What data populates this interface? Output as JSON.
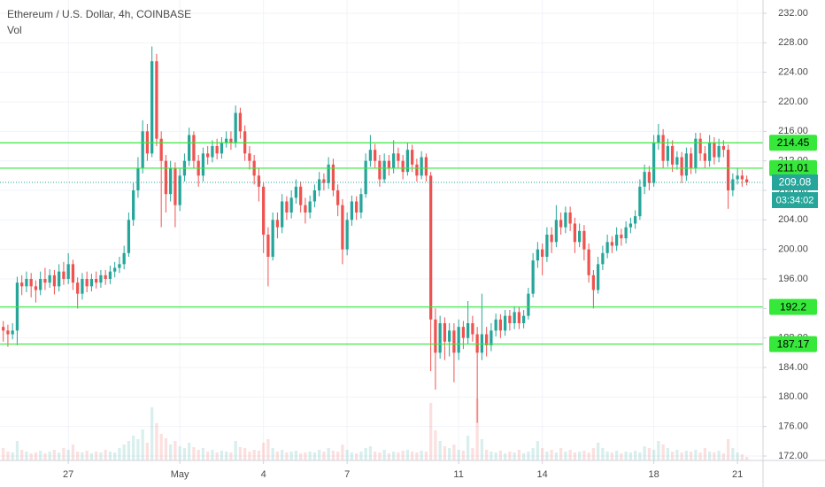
{
  "chart_data": {
    "type": "candlestick",
    "title": "Ethereum / U.S. Dollar, 4h, COINBASE",
    "subtitle": "Vol",
    "up_color": "#26a69a",
    "down_color": "#ef5350",
    "grid": true,
    "xlim": [
      -0.7,
      163.5
    ],
    "ylim": [
      171.4,
      233.8
    ],
    "yticks": [
      {
        "value": 172,
        "label": "172.00"
      },
      {
        "value": 176,
        "label": "176.00"
      },
      {
        "value": 180,
        "label": "180.00"
      },
      {
        "value": 184,
        "label": "184.00"
      },
      {
        "value": 188,
        "label": "188.00"
      },
      {
        "value": 192,
        "label": "192.00"
      },
      {
        "value": 196,
        "label": "196.00"
      },
      {
        "value": 200,
        "label": "200.00"
      },
      {
        "value": 204,
        "label": "204.00"
      },
      {
        "value": 208,
        "label": "208.00"
      },
      {
        "value": 212,
        "label": "212.00"
      },
      {
        "value": 216,
        "label": "216.00"
      },
      {
        "value": 220,
        "label": "220.00"
      },
      {
        "value": 224,
        "label": "224.00"
      },
      {
        "value": 228,
        "label": "228.00"
      },
      {
        "value": 232,
        "label": "232.00"
      }
    ],
    "xticks": [
      {
        "value": 14,
        "label": "27"
      },
      {
        "value": 38,
        "label": "May"
      },
      {
        "value": 56,
        "label": "4"
      },
      {
        "value": 74,
        "label": "7"
      },
      {
        "value": 98,
        "label": "11"
      },
      {
        "value": 116,
        "label": "14"
      },
      {
        "value": 140,
        "label": "18"
      },
      {
        "value": 158,
        "label": "21"
      }
    ],
    "open": [
      189.5,
      189,
      188.5,
      189,
      195.5,
      195,
      196,
      195,
      194.5,
      196,
      195.5,
      196.5,
      195,
      197,
      196,
      198,
      195.5,
      194,
      196,
      195,
      196,
      195.5,
      196.5,
      196,
      197,
      197.5,
      198,
      199.5,
      204,
      208,
      211,
      216,
      213,
      225.5,
      215,
      212,
      207.5,
      211,
      206,
      210,
      212,
      215.5,
      212,
      210,
      213,
      212.5,
      214,
      213,
      214.5,
      215,
      214.5,
      218.5,
      216,
      213,
      212,
      210,
      208.5,
      202,
      199,
      204,
      203,
      206.5,
      205,
      207,
      208.5,
      206,
      205,
      206.5,
      208,
      209.5,
      209,
      211.5,
      208,
      206,
      200,
      204,
      206.5,
      205,
      207.5,
      212,
      213.5,
      212,
      209.5,
      212,
      211,
      213,
      212,
      210.5,
      213.5,
      211.5,
      210,
      212.5,
      210,
      190.5,
      186,
      190,
      187.5,
      189,
      186,
      189.5,
      188,
      190,
      188.5,
      186,
      188.5,
      187,
      189,
      190.5,
      189,
      191,
      190,
      191.5,
      190,
      191,
      194,
      198.5,
      200,
      199,
      202,
      201,
      204,
      203,
      205,
      203.5,
      201,
      202.5,
      200,
      196.5,
      194.5,
      198,
      199.5,
      201,
      200.5,
      202,
      201.5,
      203,
      203.5,
      204.5,
      208.5,
      210.5,
      209,
      214.5,
      215.5,
      212,
      214,
      211.5,
      212.5,
      210,
      213,
      211,
      215,
      213,
      212,
      214.5,
      212.5,
      214,
      213.5,
      208,
      209.5,
      210,
      209.5
    ],
    "high": [
      190.3,
      189.8,
      190,
      196.3,
      196.5,
      197,
      196.8,
      195.8,
      197,
      197.5,
      197.3,
      197.2,
      198,
      198.3,
      199.5,
      198.6,
      196.2,
      196.8,
      197,
      196.7,
      197,
      197.2,
      197.2,
      197.8,
      198.3,
      199,
      200.5,
      205,
      209,
      212.5,
      217.5,
      217,
      227.5,
      226.5,
      216,
      212.8,
      212,
      211.8,
      211,
      213,
      216.5,
      216,
      212.8,
      213.8,
      214,
      214.8,
      215,
      215.2,
      216,
      216,
      219.5,
      219.2,
      216.8,
      214,
      212.8,
      211,
      209,
      203,
      205,
      205,
      207.5,
      207.2,
      208,
      209.5,
      209.2,
      207,
      207.3,
      208.8,
      210.5,
      210.3,
      212.5,
      212.3,
      208.8,
      206.8,
      205,
      207.3,
      207.2,
      208.3,
      213,
      215.5,
      214.3,
      212.8,
      213,
      212.8,
      214.8,
      213.8,
      212.8,
      214.5,
      214.2,
      212.3,
      213.3,
      213,
      210.5,
      192,
      191,
      190.8,
      190,
      190,
      190.5,
      190.3,
      193,
      191,
      189.5,
      194,
      189.5,
      190,
      191.3,
      191.2,
      191.8,
      191.8,
      192.3,
      192.2,
      191.8,
      194.8,
      199.5,
      201,
      200.8,
      203,
      203,
      206,
      205,
      205.8,
      205.8,
      204.3,
      203.5,
      203.3,
      200.8,
      197.2,
      199,
      200.5,
      202,
      201.8,
      203,
      202.8,
      203.8,
      204.3,
      205.3,
      209.5,
      211.5,
      211.3,
      215.5,
      217,
      216.3,
      215,
      214.8,
      213.3,
      213.2,
      213.8,
      213.8,
      215.8,
      215.8,
      214,
      215.5,
      215.2,
      215,
      214.8,
      214.2,
      210.3,
      211,
      210.8,
      210
    ],
    "low": [
      187.5,
      186.8,
      187.8,
      187,
      193.8,
      194.2,
      193.5,
      192.8,
      193.8,
      194.5,
      194.8,
      193.9,
      194.3,
      195.2,
      195.3,
      194.5,
      192,
      193.2,
      194.2,
      194.3,
      194.7,
      194.8,
      195.2,
      195.3,
      196.2,
      196.8,
      197.3,
      199,
      203.2,
      207,
      210.3,
      212,
      212.5,
      214,
      203,
      205,
      206.5,
      203,
      205.2,
      209.2,
      211.3,
      211,
      208.5,
      209.2,
      211.5,
      211.8,
      212.2,
      212.3,
      213.8,
      213.5,
      213.8,
      215,
      212,
      210.8,
      208.8,
      206.5,
      199.5,
      195,
      198.5,
      201.5,
      202.2,
      204,
      204.2,
      206.2,
      205,
      203.5,
      204.2,
      205.7,
      207.2,
      208,
      208.2,
      207.2,
      204.5,
      198,
      199.2,
      203.2,
      204,
      204.2,
      207,
      211.2,
      211,
      208.5,
      209,
      210,
      210.3,
      211,
      209.5,
      210,
      210.5,
      209.2,
      209.5,
      209.2,
      183.5,
      181,
      185.2,
      185,
      185.5,
      182,
      185,
      186.5,
      187.2,
      187.5,
      176.5,
      185,
      185.5,
      186.2,
      188.2,
      188,
      188.3,
      189,
      189.2,
      189.2,
      189.3,
      190.5,
      193.5,
      197.5,
      196.5,
      198.3,
      199.5,
      200.3,
      202,
      202.2,
      202.5,
      199.5,
      200.3,
      198.5,
      195.5,
      192,
      194,
      197.2,
      198.8,
      199.5,
      199.8,
      200.5,
      200.8,
      202.2,
      202.8,
      204,
      207.5,
      208,
      208.5,
      213.5,
      211,
      211.2,
      210.5,
      210.8,
      209,
      209.3,
      210.2,
      210.3,
      212,
      211,
      211.2,
      211.5,
      211.8,
      212.5,
      205.5,
      207.2,
      208.8,
      208.5,
      208.7
    ],
    "close": [
      189,
      188.5,
      189,
      195.5,
      195,
      196,
      195,
      194.5,
      196,
      195.5,
      196.5,
      195,
      197,
      196,
      198,
      195.5,
      194,
      196,
      195,
      196,
      195.5,
      196.5,
      196,
      197,
      197.5,
      198,
      199.5,
      204,
      208,
      211,
      216,
      213,
      225.5,
      215,
      212,
      207.5,
      211,
      206,
      210,
      212,
      215.5,
      212,
      210,
      213,
      212.5,
      214,
      213,
      214.5,
      215,
      214.5,
      218.5,
      216,
      213,
      212,
      210,
      208.5,
      202,
      199,
      204,
      203,
      206.5,
      205,
      207,
      208.5,
      206,
      205,
      206.5,
      208,
      209.5,
      209,
      211.5,
      208,
      206,
      200,
      204,
      206.5,
      205,
      207.5,
      212,
      213.5,
      212,
      209.5,
      212,
      211,
      213,
      212,
      210.5,
      213.5,
      211.5,
      210,
      212.5,
      210,
      190.5,
      186,
      190,
      187.5,
      189,
      186,
      189.5,
      188,
      190,
      188.5,
      186,
      188.5,
      187,
      189,
      190.5,
      189,
      191,
      190,
      191.5,
      190,
      191,
      194,
      198.5,
      200,
      199,
      202,
      201,
      204,
      203,
      205,
      203.5,
      201,
      202.5,
      200,
      196.5,
      194.5,
      198,
      199.5,
      201,
      200.5,
      202,
      201.5,
      203,
      203.5,
      204.5,
      208.5,
      210.5,
      209,
      214.5,
      215.5,
      212,
      214,
      211.5,
      212.5,
      210,
      213,
      211,
      215,
      213,
      212,
      214.5,
      212.5,
      214,
      213.5,
      208,
      209.5,
      210,
      209.5,
      209.08
    ],
    "volume": [
      14,
      10,
      9,
      22,
      12,
      10,
      8,
      9,
      11,
      8,
      10,
      12,
      9,
      14,
      12,
      18,
      10,
      9,
      11,
      8,
      10,
      9,
      12,
      10,
      9,
      14,
      18,
      22,
      28,
      24,
      35,
      20,
      60,
      42,
      30,
      25,
      18,
      22,
      16,
      14,
      20,
      15,
      12,
      14,
      10,
      12,
      9,
      11,
      10,
      9,
      22,
      15,
      14,
      10,
      12,
      11,
      20,
      24,
      14,
      10,
      12,
      9,
      10,
      11,
      8,
      9,
      10,
      9,
      12,
      10,
      14,
      11,
      10,
      18,
      12,
      9,
      8,
      10,
      14,
      16,
      10,
      9,
      12,
      8,
      10,
      9,
      11,
      12,
      10,
      9,
      11,
      10,
      65,
      34,
      22,
      16,
      14,
      18,
      12,
      11,
      28,
      14,
      70,
      24,
      12,
      10,
      9,
      11,
      8,
      10,
      9,
      12,
      8,
      10,
      14,
      22,
      14,
      10,
      12,
      9,
      14,
      10,
      12,
      9,
      10,
      11,
      9,
      14,
      20,
      14,
      10,
      9,
      11,
      8,
      10,
      9,
      11,
      9,
      16,
      14,
      12,
      22,
      18,
      14,
      10,
      12,
      9,
      11,
      10,
      12,
      9,
      14,
      10,
      9,
      11,
      8,
      24,
      14,
      9,
      7,
      4
    ],
    "levels": [
      {
        "value": 214.45,
        "color": "#35e83a"
      },
      {
        "value": 211.01,
        "color": "#35e83a"
      },
      {
        "value": 192.2,
        "color": "#35e83a"
      },
      {
        "value": 187.17,
        "color": "#35e83a"
      }
    ],
    "last_price": 209.08,
    "countdown": "03:34:02"
  }
}
